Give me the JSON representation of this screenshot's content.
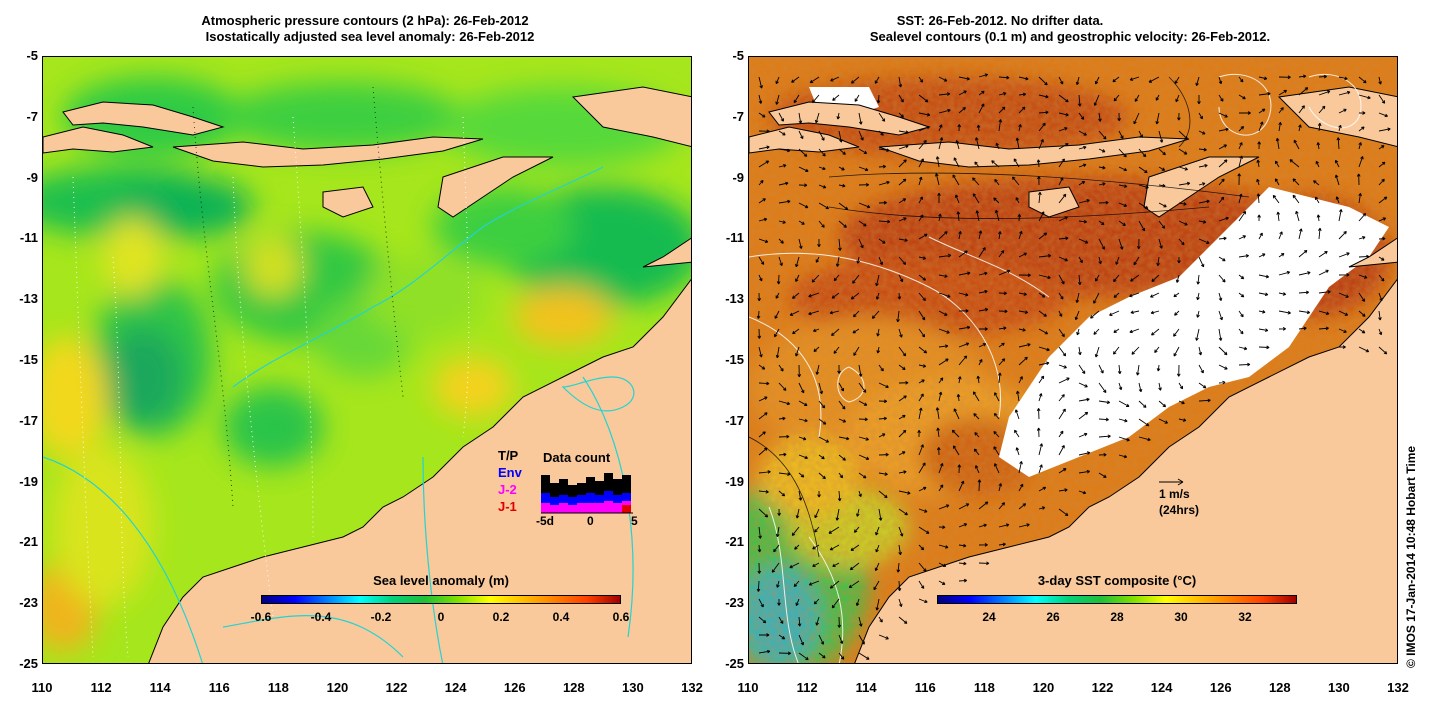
{
  "left_panel": {
    "title_line1": "Atmospheric pressure contours (2 hPa): 26-Feb-2012",
    "title_line2": "Isostatically adjusted sea level anomaly: 26-Feb-2012",
    "colorbar_title": "Sea level anomaly (m)",
    "colorbar_labels": [
      "-0.6",
      "-0.4",
      "-0.2",
      "0",
      "0.2",
      "0.4",
      "0.6"
    ],
    "legend_header": "Data count",
    "legend_items": [
      {
        "label": "T/P",
        "color": "#000000"
      },
      {
        "label": "Env",
        "color": "#0000ff"
      },
      {
        "label": "J-2",
        "color": "#ff00ff"
      },
      {
        "label": "J-1",
        "color": "#e00000"
      }
    ],
    "legend_axis": [
      "-5d",
      "0",
      "5"
    ]
  },
  "right_panel": {
    "title_line1": "SST: 26-Feb-2012. No drifter data.",
    "title_line2": "Sealevel contours (0.1 m) and geostrophic velocity: 26-Feb-2012.",
    "colorbar_title": "3-day SST composite (°C)",
    "colorbar_labels": [
      "24",
      "26",
      "28",
      "30",
      "32"
    ],
    "scale_arrow_label": "1 m/s",
    "scale_arrow_sub": "(24hrs)"
  },
  "axes": {
    "y_labels": [
      "-5",
      "-7",
      "-9",
      "-11",
      "-13",
      "-15",
      "-17",
      "-19",
      "-21",
      "-23",
      "-25"
    ],
    "x_labels": [
      "110",
      "112",
      "114",
      "116",
      "118",
      "120",
      "122",
      "124",
      "126",
      "128",
      "130",
      "132"
    ]
  },
  "credit": "© IMOS 17-Jan-2014 10:48 Hobart Time",
  "colors": {
    "land": "#f9c99b",
    "coast_line": "#000000",
    "bathy_line": "#22d3d3",
    "no_data": "#ffffff"
  }
}
